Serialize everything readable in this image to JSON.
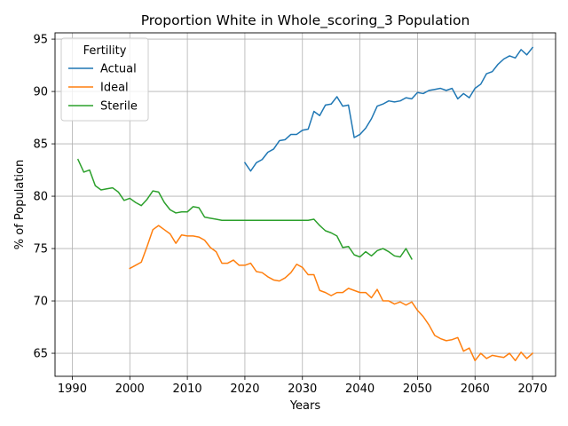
{
  "chart_data": {
    "type": "line",
    "title": "Proportion White in Whole_scoring_3 Population",
    "xlabel": "Years",
    "ylabel": "% of Population",
    "xlim": [
      1987,
      2074
    ],
    "ylim": [
      62.8,
      95.6
    ],
    "x_ticks": [
      1990,
      2000,
      2010,
      2020,
      2030,
      2040,
      2050,
      2060,
      2070
    ],
    "y_ticks": [
      65,
      70,
      75,
      80,
      85,
      90,
      95
    ],
    "grid": true,
    "legend": {
      "title": "Fertility",
      "placement": "top-left"
    },
    "series": [
      {
        "name": "Actual",
        "color": "#1f77b4",
        "x": [
          2020,
          2021,
          2022,
          2023,
          2024,
          2025,
          2026,
          2027,
          2028,
          2029,
          2030,
          2031,
          2032,
          2033,
          2034,
          2035,
          2036,
          2037,
          2038,
          2039,
          2040,
          2041,
          2042,
          2043,
          2044,
          2045,
          2046,
          2047,
          2048,
          2049,
          2050,
          2051,
          2052,
          2053,
          2054,
          2055,
          2056,
          2057,
          2058,
          2059,
          2060,
          2061,
          2062,
          2063,
          2064,
          2065,
          2066,
          2067,
          2068,
          2069,
          2070
        ],
        "y": [
          83.2,
          82.4,
          83.2,
          83.5,
          84.2,
          84.5,
          85.3,
          85.4,
          85.9,
          85.9,
          86.3,
          86.4,
          88.1,
          87.7,
          88.7,
          88.8,
          89.5,
          88.6,
          88.7,
          85.6,
          85.9,
          86.5,
          87.4,
          88.6,
          88.8,
          89.1,
          89.0,
          89.1,
          89.4,
          89.3,
          89.9,
          89.8,
          90.1,
          90.2,
          90.3,
          90.1,
          90.3,
          89.3,
          89.8,
          89.4,
          90.3,
          90.7,
          91.7,
          91.9,
          92.6,
          93.1,
          93.4,
          93.2,
          94.0,
          93.5,
          94.2
        ]
      },
      {
        "name": "Ideal",
        "color": "#ff7f0e",
        "x": [
          2000,
          2001,
          2002,
          2003,
          2004,
          2005,
          2006,
          2007,
          2008,
          2009,
          2010,
          2011,
          2012,
          2013,
          2014,
          2015,
          2016,
          2017,
          2018,
          2019,
          2020,
          2021,
          2022,
          2023,
          2024,
          2025,
          2026,
          2027,
          2028,
          2029,
          2030,
          2031,
          2032,
          2033,
          2034,
          2035,
          2036,
          2037,
          2038,
          2039,
          2040,
          2041,
          2042,
          2043,
          2044,
          2045,
          2046,
          2047,
          2048,
          2049,
          2050,
          2051,
          2052,
          2053,
          2054,
          2055,
          2056,
          2057,
          2058,
          2059,
          2060,
          2061,
          2062,
          2063,
          2064,
          2065,
          2066,
          2067,
          2068,
          2069,
          2070
        ],
        "y": [
          73.1,
          73.4,
          73.7,
          75.2,
          76.8,
          77.2,
          76.8,
          76.4,
          75.5,
          76.3,
          76.2,
          76.2,
          76.1,
          75.8,
          75.1,
          74.7,
          73.6,
          73.6,
          73.9,
          73.4,
          73.4,
          73.6,
          72.8,
          72.7,
          72.3,
          72.0,
          71.9,
          72.2,
          72.7,
          73.5,
          73.2,
          72.5,
          72.5,
          71.0,
          70.8,
          70.5,
          70.8,
          70.8,
          71.2,
          71.0,
          70.8,
          70.8,
          70.3,
          71.1,
          70.0,
          70.0,
          69.7,
          69.9,
          69.6,
          69.9,
          69.1,
          68.5,
          67.7,
          66.7,
          66.4,
          66.2,
          66.3,
          66.5,
          65.2,
          65.5,
          64.3,
          65.0,
          64.5,
          64.8,
          64.7,
          64.6,
          65.0,
          64.3,
          65.1,
          64.5,
          65.0
        ]
      },
      {
        "name": "Sterile",
        "color": "#2ca02c",
        "x": [
          1991,
          1992,
          1993,
          1994,
          1995,
          1996,
          1997,
          1998,
          1999,
          2000,
          2001,
          2002,
          2003,
          2004,
          2005,
          2006,
          2007,
          2008,
          2009,
          2010,
          2011,
          2012,
          2013,
          2014,
          2015,
          2016,
          2017,
          2018,
          2019,
          2020,
          2021,
          2022,
          2023,
          2024,
          2025,
          2026,
          2027,
          2028,
          2029,
          2030,
          2031,
          2032,
          2033,
          2034,
          2035,
          2036,
          2037,
          2038,
          2039,
          2040,
          2041,
          2042,
          2043,
          2044,
          2045,
          2046,
          2047,
          2048,
          2049
        ],
        "y": [
          83.5,
          82.3,
          82.5,
          81.0,
          80.6,
          80.7,
          80.8,
          80.4,
          79.6,
          79.8,
          79.4,
          79.1,
          79.7,
          80.5,
          80.4,
          79.4,
          78.7,
          78.4,
          78.5,
          78.5,
          79.0,
          78.9,
          78.0,
          77.9,
          77.8,
          77.7,
          77.7,
          77.7,
          77.7,
          77.7,
          77.7,
          77.7,
          77.7,
          77.7,
          77.7,
          77.7,
          77.7,
          77.7,
          77.7,
          77.7,
          77.7,
          77.8,
          77.2,
          76.7,
          76.5,
          76.2,
          75.1,
          75.2,
          74.4,
          74.2,
          74.7,
          74.3,
          74.8,
          75.0,
          74.7,
          74.3,
          74.2,
          75.0,
          74.0
        ]
      }
    ]
  }
}
